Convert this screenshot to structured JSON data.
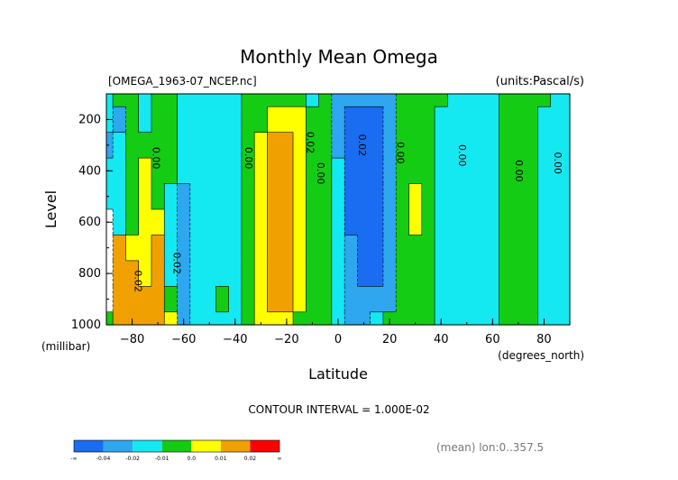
{
  "chart_data": {
    "type": "heatmap",
    "title": "Monthly Mean Omega",
    "file_label": "[OMEGA_1963-07_NCEP.nc]",
    "units_label": "(units:Pascal/s)",
    "xlabel": "Latitude",
    "xunits": "(degrees_north)",
    "ylabel": "Level",
    "yunits": "(millibar)",
    "xlim": [
      -90,
      90
    ],
    "ylim": [
      1000,
      100
    ],
    "y_inverted": true,
    "x_ticks": [
      -80,
      -60,
      -40,
      -20,
      0,
      20,
      40,
      60,
      80
    ],
    "y_ticks": [
      200,
      400,
      600,
      800,
      1000
    ],
    "contour_interval_text": "CONTOUR INTERVAL = 1.000E-02",
    "footer_text": "(mean) lon:0..357.5",
    "contour_labels": [
      {
        "text": "0.00",
        "x": -72,
        "y": 350
      },
      {
        "text": "0.00",
        "x": -36,
        "y": 350
      },
      {
        "text": "0.02",
        "x": -12,
        "y": 290
      },
      {
        "text": "0.00",
        "x": -8,
        "y": 410
      },
      {
        "text": "0.02",
        "x": 8,
        "y": 300
      },
      {
        "text": "0.00",
        "x": 23,
        "y": 330
      },
      {
        "text": "0.00",
        "x": 47,
        "y": 340
      },
      {
        "text": "0.00",
        "x": 69,
        "y": 400
      },
      {
        "text": "0.00",
        "x": 84,
        "y": 370
      },
      {
        "text": "0.02",
        "x": -64,
        "y": 760
      },
      {
        "text": "0.02",
        "x": -79,
        "y": 830
      }
    ],
    "colorbar": {
      "levels": [
        "-∞",
        "-0.04",
        "-0.02",
        "-0.01",
        "0.0",
        "0.01",
        "0.02",
        "∞"
      ],
      "colors": [
        "#1a6cf0",
        "#2fa6f0",
        "#14e8f0",
        "#14cc14",
        "#ffff00",
        "#f0a000",
        "#ff0000"
      ]
    },
    "latitude_columns": [
      -90,
      -85,
      -80,
      -75,
      -70,
      -65,
      -60,
      -55,
      -50,
      -45,
      -40,
      -35,
      -30,
      -25,
      -20,
      -15,
      -10,
      -5,
      0,
      5,
      10,
      15,
      20,
      25,
      30,
      35,
      40,
      45,
      50,
      55,
      60,
      65,
      70,
      75,
      80,
      85,
      90
    ],
    "level_rows": [
      100,
      200,
      300,
      400,
      500,
      600,
      700,
      800,
      900,
      1000
    ],
    "omega_categories": [
      [
        3,
        4,
        4,
        3,
        4,
        4,
        3,
        3,
        3,
        3,
        3,
        4,
        4,
        4,
        4,
        4,
        3,
        4,
        2,
        2,
        2,
        2,
        2,
        4,
        4,
        4,
        4,
        3,
        3,
        3,
        3,
        4,
        4,
        4,
        4,
        3,
        3
      ],
      [
        3,
        2,
        4,
        3,
        4,
        4,
        3,
        3,
        3,
        3,
        3,
        4,
        4,
        5,
        5,
        5,
        4,
        4,
        2,
        1,
        1,
        1,
        2,
        4,
        4,
        4,
        3,
        3,
        3,
        3,
        3,
        4,
        4,
        4,
        3,
        3,
        3
      ],
      [
        2,
        3,
        4,
        4,
        4,
        4,
        3,
        3,
        3,
        3,
        3,
        4,
        5,
        6,
        6,
        5,
        4,
        4,
        2,
        1,
        1,
        1,
        2,
        4,
        4,
        4,
        3,
        3,
        3,
        3,
        3,
        4,
        4,
        4,
        3,
        3,
        3
      ],
      [
        3,
        3,
        4,
        5,
        4,
        4,
        3,
        3,
        3,
        3,
        3,
        4,
        5,
        6,
        6,
        5,
        4,
        4,
        3,
        1,
        1,
        1,
        2,
        4,
        4,
        4,
        3,
        3,
        3,
        3,
        3,
        4,
        4,
        4,
        3,
        3,
        3
      ],
      [
        3,
        3,
        4,
        5,
        4,
        3,
        2,
        3,
        3,
        3,
        3,
        4,
        5,
        6,
        6,
        5,
        4,
        4,
        3,
        1,
        1,
        1,
        2,
        4,
        5,
        4,
        3,
        3,
        3,
        3,
        3,
        4,
        4,
        4,
        3,
        3,
        3
      ],
      [
        0,
        3,
        4,
        5,
        5,
        3,
        2,
        3,
        3,
        3,
        3,
        4,
        5,
        6,
        6,
        5,
        4,
        4,
        3,
        1,
        1,
        1,
        2,
        4,
        5,
        4,
        3,
        3,
        3,
        3,
        3,
        4,
        4,
        4,
        3,
        3,
        3
      ],
      [
        0,
        6,
        5,
        5,
        6,
        3,
        2,
        3,
        3,
        3,
        3,
        4,
        5,
        6,
        6,
        5,
        4,
        4,
        3,
        2,
        1,
        1,
        2,
        4,
        4,
        4,
        3,
        3,
        3,
        3,
        3,
        4,
        4,
        4,
        3,
        3,
        3
      ],
      [
        0,
        6,
        6,
        5,
        6,
        3,
        2,
        3,
        3,
        3,
        3,
        4,
        5,
        6,
        6,
        5,
        4,
        4,
        3,
        2,
        1,
        1,
        2,
        4,
        4,
        4,
        3,
        3,
        3,
        3,
        3,
        4,
        4,
        4,
        3,
        3,
        3
      ],
      [
        0,
        6,
        6,
        6,
        6,
        4,
        2,
        3,
        3,
        4,
        3,
        4,
        5,
        6,
        6,
        5,
        4,
        4,
        3,
        2,
        2,
        2,
        2,
        4,
        4,
        4,
        3,
        3,
        3,
        3,
        3,
        4,
        4,
        4,
        3,
        3,
        3
      ],
      [
        4,
        6,
        6,
        6,
        6,
        5,
        2,
        3,
        3,
        3,
        3,
        4,
        5,
        5,
        5,
        4,
        4,
        4,
        3,
        2,
        2,
        3,
        4,
        4,
        4,
        4,
        3,
        3,
        3,
        3,
        3,
        4,
        4,
        4,
        3,
        3,
        3
      ]
    ]
  }
}
